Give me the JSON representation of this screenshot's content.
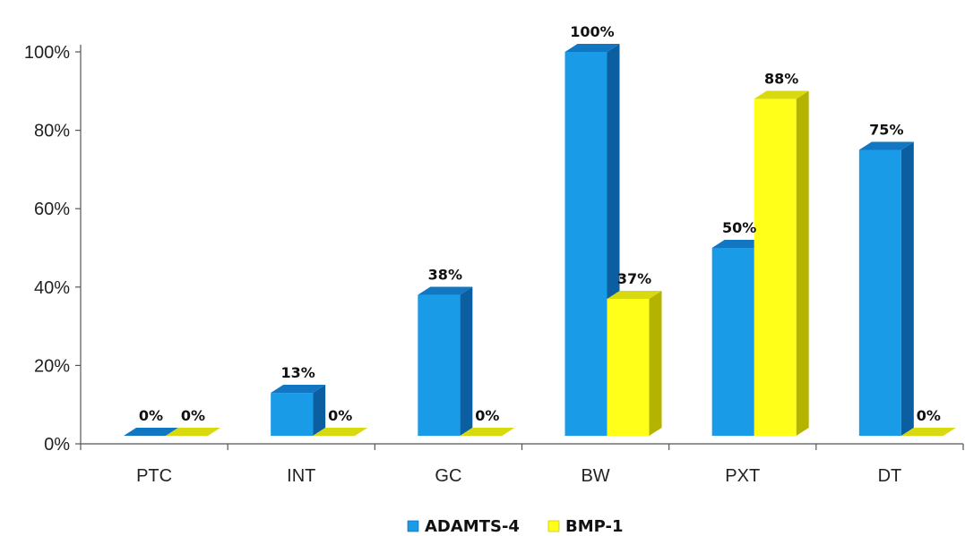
{
  "chart_data": {
    "type": "bar",
    "categories": [
      "PTC",
      "INT",
      "GC",
      "BW",
      "PXT",
      "DT"
    ],
    "series": [
      {
        "name": "ADAMTS-4",
        "values": [
          0,
          13,
          38,
          100,
          50,
          75
        ],
        "labels": [
          "0%",
          "13%",
          "38%",
          "100%",
          "50%",
          "75%"
        ],
        "color": "#1a9be8",
        "top_color": "#1277c2",
        "side_color": "#0b5fa0"
      },
      {
        "name": "BMP-1",
        "values": [
          0,
          0,
          0,
          37,
          88,
          0
        ],
        "labels": [
          "0%",
          "0%",
          "0%",
          "37%",
          "88%",
          "0%"
        ],
        "color": "#ffff1a",
        "top_color": "#d9d90f",
        "side_color": "#b3b300"
      }
    ],
    "ylim": [
      0,
      100
    ],
    "yticks": [
      "0%",
      "20%",
      "40%",
      "60%",
      "80%",
      "100%"
    ],
    "ytick_values": [
      0,
      20,
      40,
      60,
      80,
      100
    ],
    "title": "",
    "xlabel": "",
    "ylabel": "",
    "grid": false,
    "legend": "bottom-center"
  }
}
